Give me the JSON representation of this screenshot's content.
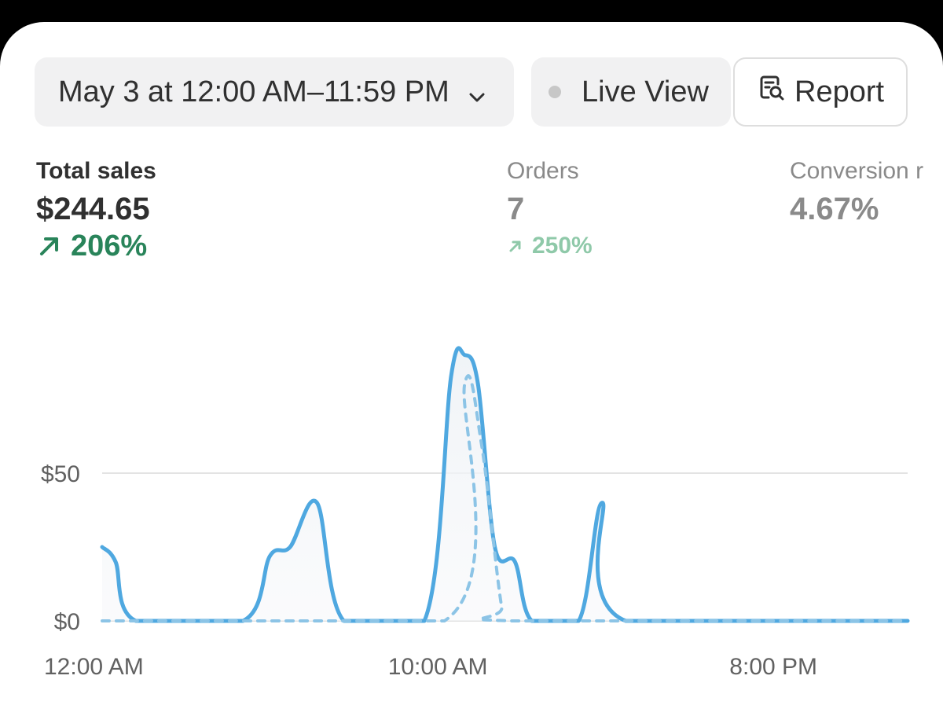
{
  "header": {
    "date_range": "May 3 at 12:00 AM–11:59 PM",
    "live_view": "Live View",
    "report": "Report"
  },
  "metrics": [
    {
      "label": "Total sales",
      "value": "$244.65",
      "change": "206%",
      "direction": "up"
    },
    {
      "label": "Orders",
      "value": "7",
      "change": "250%",
      "direction": "up"
    },
    {
      "label": "Conversion r",
      "value": "4.67%"
    }
  ],
  "colors": {
    "accent_line": "#4fa8e0",
    "comparison_line": "#8cc4e6",
    "positive": "#29845a",
    "positive_faded": "#8fc9a9"
  },
  "chart_data": {
    "type": "line",
    "y_ticks": [
      "$0",
      "$50"
    ],
    "y_tick_values": [
      0,
      50
    ],
    "x_ticks": [
      "12:00 AM",
      "10:00 AM",
      "8:00 PM"
    ],
    "x_tick_hours": [
      0,
      10,
      20
    ],
    "ylim": [
      0,
      90
    ],
    "xlim": [
      0,
      24
    ],
    "grid": true,
    "series": [
      {
        "style": "solid",
        "points": [
          [
            0,
            25
          ],
          [
            0.4,
            20
          ],
          [
            1,
            0
          ],
          [
            4.2,
            0
          ],
          [
            5,
            22
          ],
          [
            5.6,
            25
          ],
          [
            6.4,
            40
          ],
          [
            7.2,
            0
          ],
          [
            9.6,
            0
          ],
          [
            10.4,
            83
          ],
          [
            10.8,
            90
          ],
          [
            11.2,
            80
          ],
          [
            11.7,
            25
          ],
          [
            12.3,
            20
          ],
          [
            12.8,
            0
          ],
          [
            14.2,
            0
          ],
          [
            14.9,
            40
          ],
          [
            15.6,
            0
          ],
          [
            24,
            0
          ]
        ]
      },
      {
        "style": "dashed",
        "points": [
          [
            0,
            0
          ],
          [
            10.2,
            0
          ],
          [
            10.8,
            80
          ],
          [
            11.3,
            60
          ],
          [
            11.9,
            5
          ],
          [
            12.2,
            0
          ],
          [
            24,
            0
          ]
        ]
      }
    ]
  }
}
